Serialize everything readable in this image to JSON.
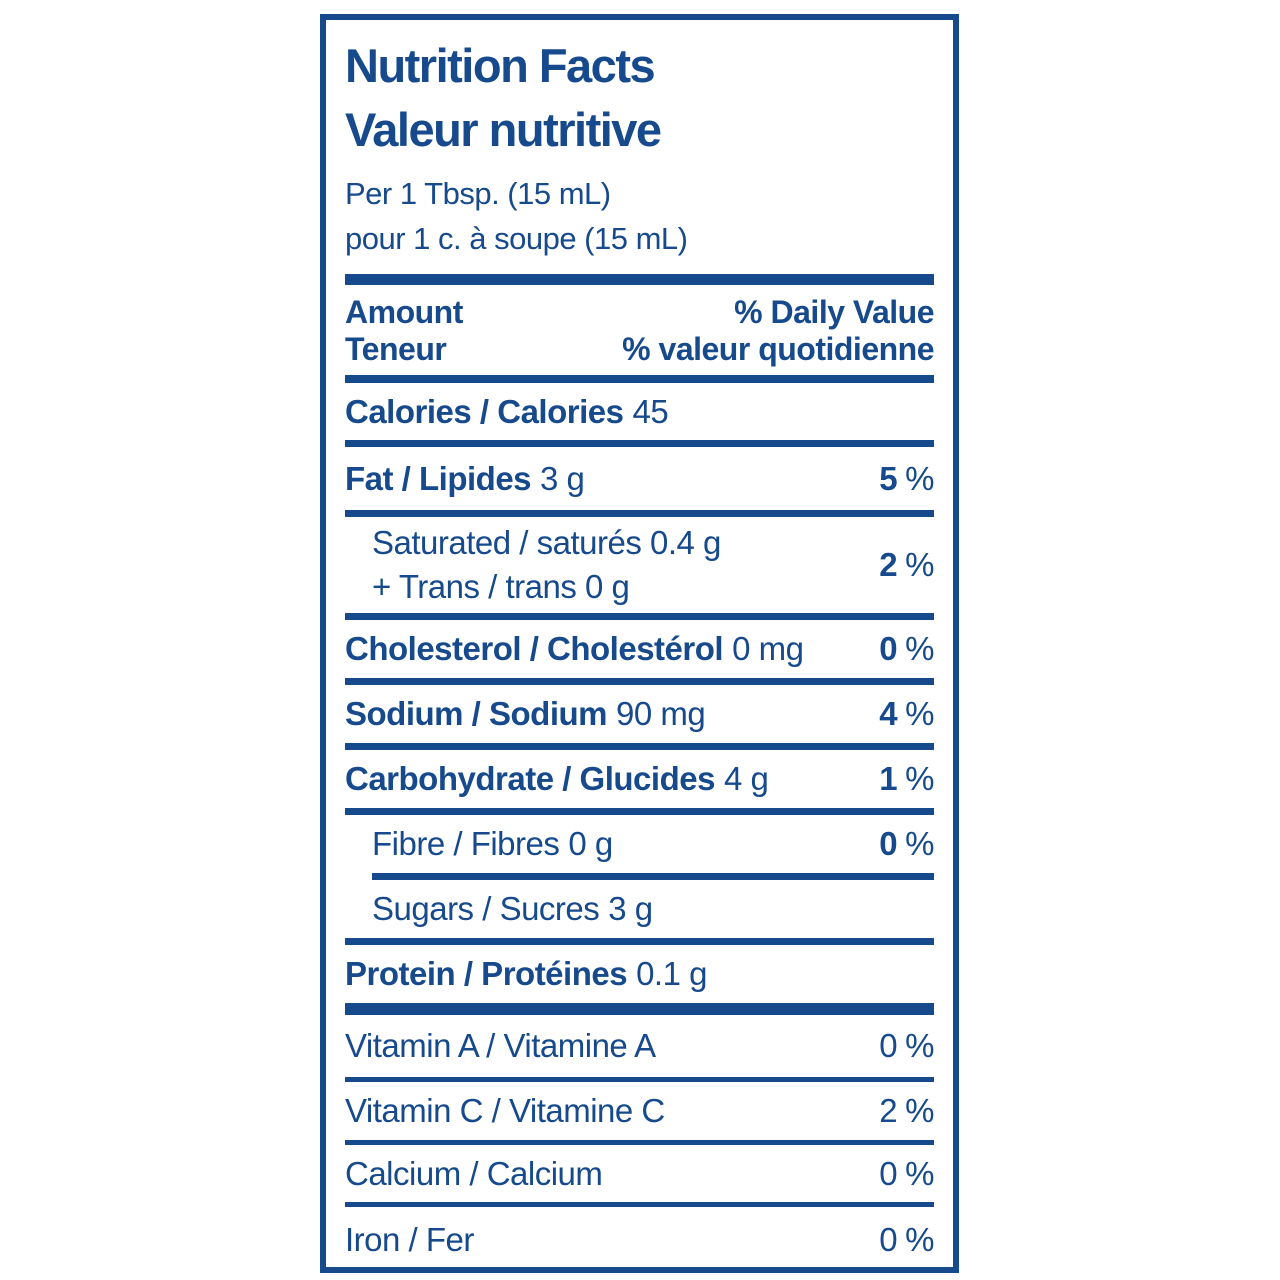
{
  "label": {
    "title_en": "Nutrition Facts",
    "title_fr": "Valeur nutritive",
    "serving_en": "Per 1 Tbsp. (15 mL)",
    "serving_fr": "pour 1 c. à soupe (15 mL)",
    "header": {
      "amount_en": "Amount",
      "amount_fr": "Teneur",
      "daily_value_en": "% Daily Value",
      "daily_value_fr": "% valeur quotidienne"
    },
    "percent_sign": "%",
    "colors": {
      "label_blue": "#164a8c",
      "background": "#ffffff"
    },
    "rows": {
      "calories": {
        "name": "Calories / Calories",
        "amount": "45"
      },
      "fat": {
        "name": "Fat / Lipides",
        "amount": "3 g",
        "dv": "5"
      },
      "saturated_trans": {
        "line1": "Saturated / saturés 0.4 g",
        "line2": "+ Trans / trans 0 g",
        "dv": "2"
      },
      "cholesterol": {
        "name": "Cholesterol / Cholestérol",
        "amount": "0 mg",
        "dv": "0"
      },
      "sodium": {
        "name": "Sodium / Sodium",
        "amount": "90 mg",
        "dv": "4"
      },
      "carbohydrate": {
        "name": "Carbohydrate / Glucides",
        "amount": "4 g",
        "dv": "1"
      },
      "fibre": {
        "name": "Fibre / Fibres",
        "amount": "0 g",
        "dv": "0"
      },
      "sugars": {
        "name": "Sugars / Sucres",
        "amount": "3 g"
      },
      "protein": {
        "name": "Protein / Protéines",
        "amount": "0.1 g"
      }
    },
    "micronutrients": {
      "vitamin_a": {
        "name": "Vitamin A / Vitamine A",
        "dv": "0"
      },
      "vitamin_c": {
        "name": "Vitamin C / Vitamine C",
        "dv": "2"
      },
      "calcium": {
        "name": "Calcium / Calcium",
        "dv": "0"
      },
      "iron": {
        "name": "Iron / Fer",
        "dv": "0"
      }
    }
  }
}
